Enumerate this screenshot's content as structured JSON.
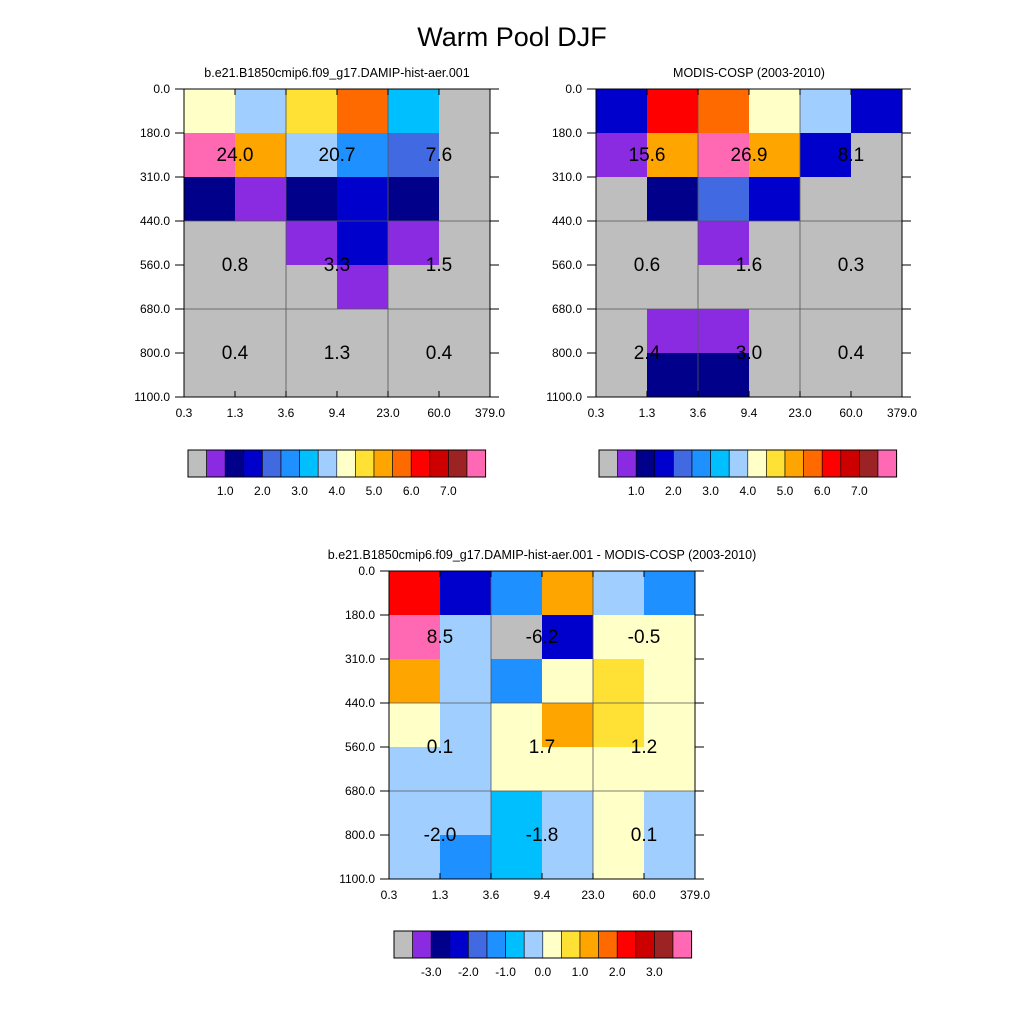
{
  "title": "Warm Pool DJF",
  "palette": [
    "#bebebe",
    "#8a2be2",
    "#00008b",
    "#0000cd",
    "#4169e1",
    "#1e90ff",
    "#00bfff",
    "#a0cfff",
    "#ffffc8",
    "#ffe135",
    "#ffa500",
    "#ff6a00",
    "#ff0000",
    "#cd0000",
    "#9b2323",
    "#ff69b4"
  ],
  "chart_data": [
    {
      "type": "heatmap",
      "title": "b.e21.B1850cmip6.f09_g17.DAMIP-hist-aer.001",
      "x_ticks": [
        "0.3",
        "1.3",
        "3.6",
        "9.4",
        "23.0",
        "60.0",
        "379.0"
      ],
      "y_ticks": [
        "0.0",
        "180.0",
        "310.0",
        "440.0",
        "560.0",
        "680.0",
        "800.0",
        "1100.0"
      ],
      "cell_color_index": [
        [
          8,
          7,
          9,
          11,
          6,
          0
        ],
        [
          15,
          10,
          7,
          5,
          4,
          0
        ],
        [
          2,
          1,
          2,
          3,
          2,
          0
        ],
        [
          0,
          0,
          1,
          3,
          1,
          0
        ],
        [
          0,
          0,
          0,
          1,
          0,
          0
        ],
        [
          0,
          0,
          0,
          0,
          0,
          0
        ],
        [
          0,
          0,
          0,
          0,
          0,
          0
        ]
      ],
      "annotations": [
        {
          "text": "24.0",
          "xi": 1,
          "yi": 1.5
        },
        {
          "text": "20.7",
          "xi": 3,
          "yi": 1.5
        },
        {
          "text": "7.6",
          "xi": 5,
          "yi": 1.5
        },
        {
          "text": "0.8",
          "xi": 1,
          "yi": 4
        },
        {
          "text": "3.3",
          "xi": 3,
          "yi": 4
        },
        {
          "text": "1.5",
          "xi": 5,
          "yi": 4
        },
        {
          "text": "0.4",
          "xi": 1,
          "yi": 6
        },
        {
          "text": "1.3",
          "xi": 3,
          "yi": 6
        },
        {
          "text": "0.4",
          "xi": 5,
          "yi": 6
        }
      ],
      "colorbar_labels": [
        "1.0",
        "2.0",
        "3.0",
        "4.0",
        "5.0",
        "6.0",
        "7.0"
      ]
    },
    {
      "type": "heatmap",
      "title": "MODIS-COSP (2003-2010)",
      "x_ticks": [
        "0.3",
        "1.3",
        "3.6",
        "9.4",
        "23.0",
        "60.0",
        "379.0"
      ],
      "y_ticks": [
        "0.0",
        "180.0",
        "310.0",
        "440.0",
        "560.0",
        "680.0",
        "800.0",
        "1100.0"
      ],
      "cell_color_index": [
        [
          3,
          12,
          11,
          8,
          7,
          3
        ],
        [
          1,
          10,
          15,
          10,
          3,
          0
        ],
        [
          0,
          2,
          4,
          3,
          0,
          0
        ],
        [
          0,
          0,
          1,
          0,
          0,
          0
        ],
        [
          0,
          0,
          0,
          0,
          0,
          0
        ],
        [
          0,
          1,
          1,
          0,
          0,
          0
        ],
        [
          0,
          2,
          2,
          0,
          0,
          0
        ]
      ],
      "annotations": [
        {
          "text": "15.6",
          "xi": 1,
          "yi": 1.5
        },
        {
          "text": "26.9",
          "xi": 3,
          "yi": 1.5
        },
        {
          "text": "8.1",
          "xi": 5,
          "yi": 1.5
        },
        {
          "text": "0.6",
          "xi": 1,
          "yi": 4
        },
        {
          "text": "1.6",
          "xi": 3,
          "yi": 4
        },
        {
          "text": "0.3",
          "xi": 5,
          "yi": 4
        },
        {
          "text": "2.4",
          "xi": 1,
          "yi": 6
        },
        {
          "text": "3.0",
          "xi": 3,
          "yi": 6
        },
        {
          "text": "0.4",
          "xi": 5,
          "yi": 6
        }
      ],
      "colorbar_labels": [
        "1.0",
        "2.0",
        "3.0",
        "4.0",
        "5.0",
        "6.0",
        "7.0"
      ]
    },
    {
      "type": "heatmap",
      "title": "b.e21.B1850cmip6.f09_g17.DAMIP-hist-aer.001 - MODIS-COSP (2003-2010)",
      "x_ticks": [
        "0.3",
        "1.3",
        "3.6",
        "9.4",
        "23.0",
        "60.0",
        "379.0"
      ],
      "y_ticks": [
        "0.0",
        "180.0",
        "310.0",
        "440.0",
        "560.0",
        "680.0",
        "800.0",
        "1100.0"
      ],
      "cell_color_index": [
        [
          12,
          3,
          5,
          10,
          7,
          5
        ],
        [
          15,
          7,
          0,
          3,
          8,
          8
        ],
        [
          10,
          7,
          5,
          8,
          9,
          8
        ],
        [
          8,
          7,
          8,
          10,
          9,
          8
        ],
        [
          7,
          7,
          8,
          8,
          8,
          8
        ],
        [
          7,
          7,
          6,
          7,
          8,
          7
        ],
        [
          7,
          5,
          6,
          7,
          8,
          7
        ]
      ],
      "annotations": [
        {
          "text": "8.5",
          "xi": 1,
          "yi": 1.5
        },
        {
          "text": "-6.2",
          "xi": 3,
          "yi": 1.5
        },
        {
          "text": "-0.5",
          "xi": 5,
          "yi": 1.5
        },
        {
          "text": "0.1",
          "xi": 1,
          "yi": 4
        },
        {
          "text": "1.7",
          "xi": 3,
          "yi": 4
        },
        {
          "text": "1.2",
          "xi": 5,
          "yi": 4
        },
        {
          "text": "-2.0",
          "xi": 1,
          "yi": 6
        },
        {
          "text": "-1.8",
          "xi": 3,
          "yi": 6
        },
        {
          "text": "0.1",
          "xi": 5,
          "yi": 6
        }
      ],
      "colorbar_labels": [
        "-3.0",
        "-2.0",
        "-1.0",
        "0.0",
        "1.0",
        "2.0",
        "3.0"
      ]
    }
  ]
}
